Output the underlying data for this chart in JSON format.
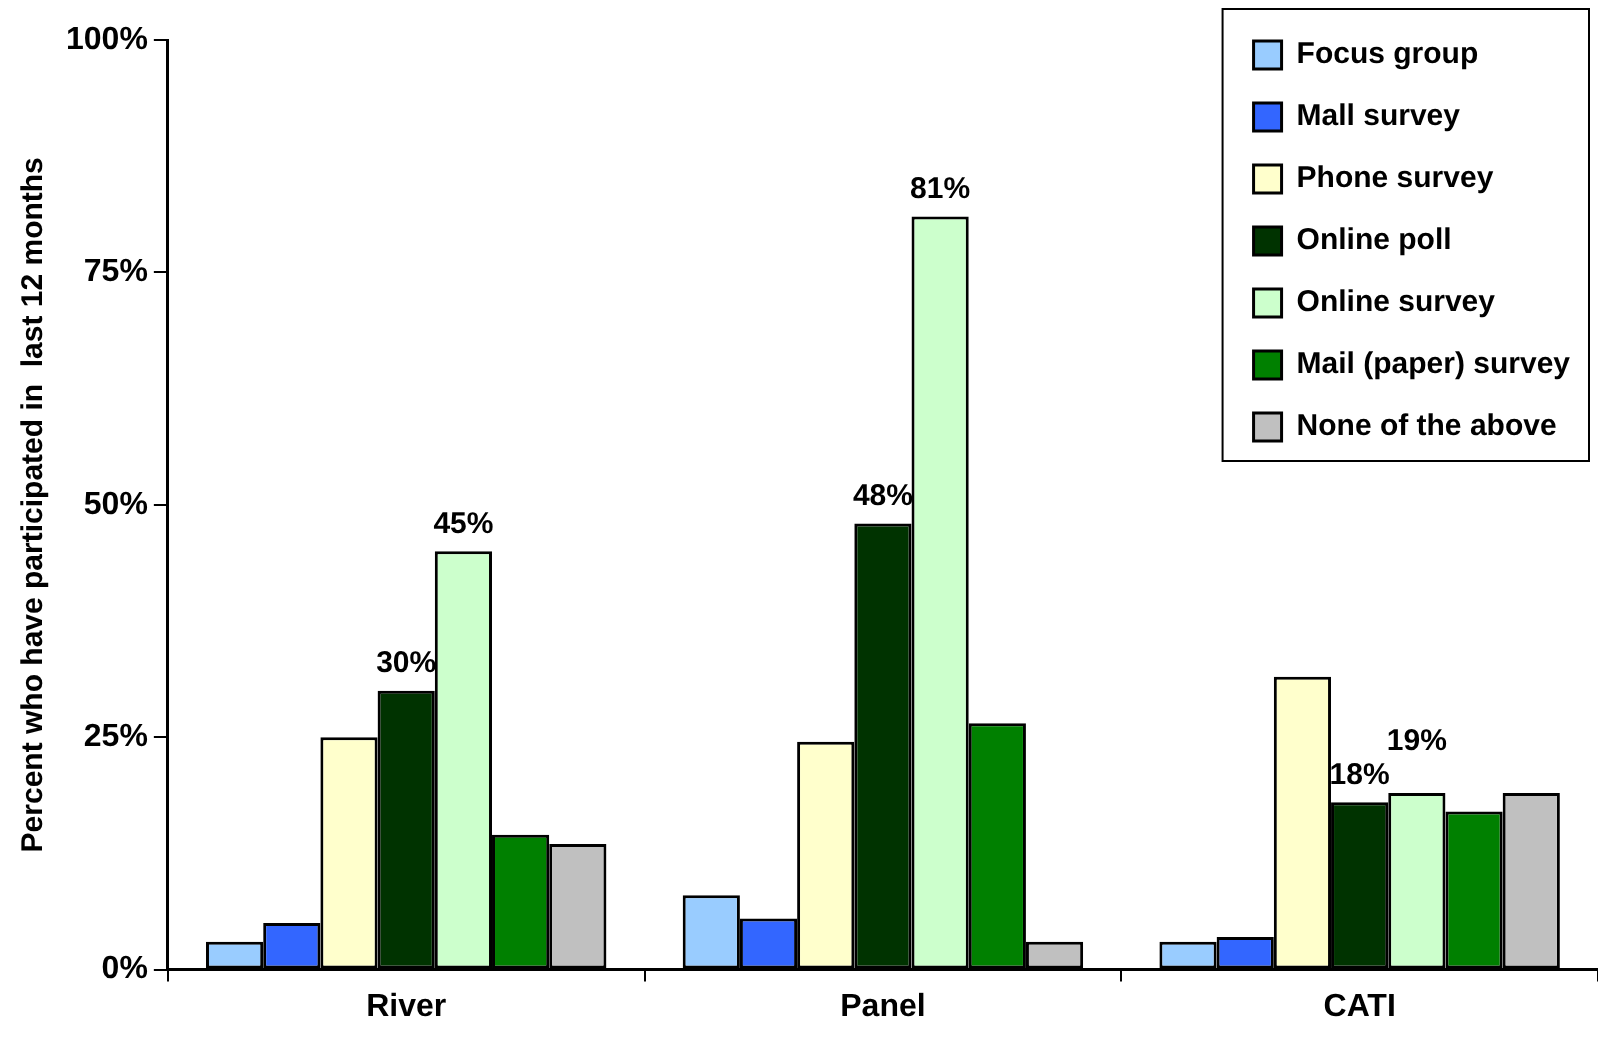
{
  "chart_data": {
    "type": "bar",
    "ylabel": "Percent who have participated in  last 12 months",
    "categories": [
      "River",
      "Panel",
      "CATI"
    ],
    "ylim": [
      0,
      100
    ],
    "yticks": [
      {
        "value": 0,
        "label": "0%"
      },
      {
        "value": 25,
        "label": "25%"
      },
      {
        "value": 50,
        "label": "50%"
      },
      {
        "value": 75,
        "label": "75%"
      },
      {
        "value": 100,
        "label": "100%"
      }
    ],
    "grid": false,
    "legend": "top right",
    "series": [
      {
        "name": "Focus group",
        "color": "#99ccff",
        "values": [
          3,
          8,
          3
        ]
      },
      {
        "name": "Mall survey",
        "color": "#3366ff",
        "values": [
          5,
          5.5,
          3.5
        ]
      },
      {
        "name": "Phone survey",
        "color": "#ffffcc",
        "values": [
          25,
          24.5,
          31.5
        ]
      },
      {
        "name": "Online poll",
        "color": "#003300",
        "values": [
          30,
          48,
          18
        ],
        "value_labels": [
          "30%",
          "48%",
          "18%"
        ]
      },
      {
        "name": "Online survey",
        "color": "#ccffcc",
        "values": [
          45,
          81,
          19
        ],
        "value_labels": [
          "45%",
          "81%",
          "19%"
        ]
      },
      {
        "name": "Mail (paper) survey",
        "color": "#008000",
        "values": [
          14.5,
          26.5,
          17
        ]
      },
      {
        "name": "None of the above",
        "color": "#c0c0c0",
        "values": [
          13.5,
          3,
          19
        ]
      }
    ]
  }
}
